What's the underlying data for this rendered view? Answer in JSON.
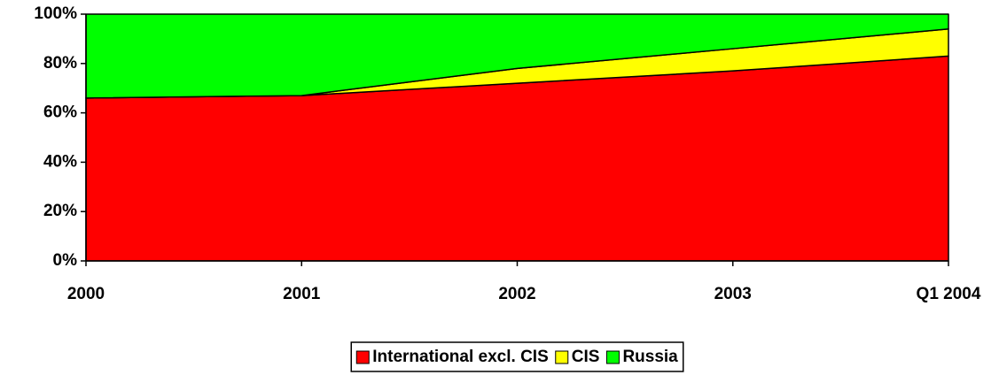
{
  "chart_data": {
    "type": "stacked_area",
    "categories": [
      "2000",
      "2001",
      "2002",
      "2003",
      "Q1 2004"
    ],
    "series": [
      {
        "name": "International excl. CIS",
        "color": "#ff0000",
        "values": [
          66,
          67,
          72,
          77,
          83
        ]
      },
      {
        "name": "CIS",
        "color": "#ffff00",
        "values": [
          0,
          0,
          6,
          9,
          11
        ]
      },
      {
        "name": "Russia",
        "color": "#00ff00",
        "values": [
          34,
          33,
          22,
          14,
          6
        ]
      }
    ],
    "ylim": [
      0,
      100
    ],
    "yticks": [
      {
        "value": 0,
        "label": "0%"
      },
      {
        "value": 20,
        "label": "20%"
      },
      {
        "value": 40,
        "label": "40%"
      },
      {
        "value": 60,
        "label": "60%"
      },
      {
        "value": 80,
        "label": "80%"
      },
      {
        "value": 100,
        "label": "100%"
      }
    ],
    "legend": "bottom"
  }
}
